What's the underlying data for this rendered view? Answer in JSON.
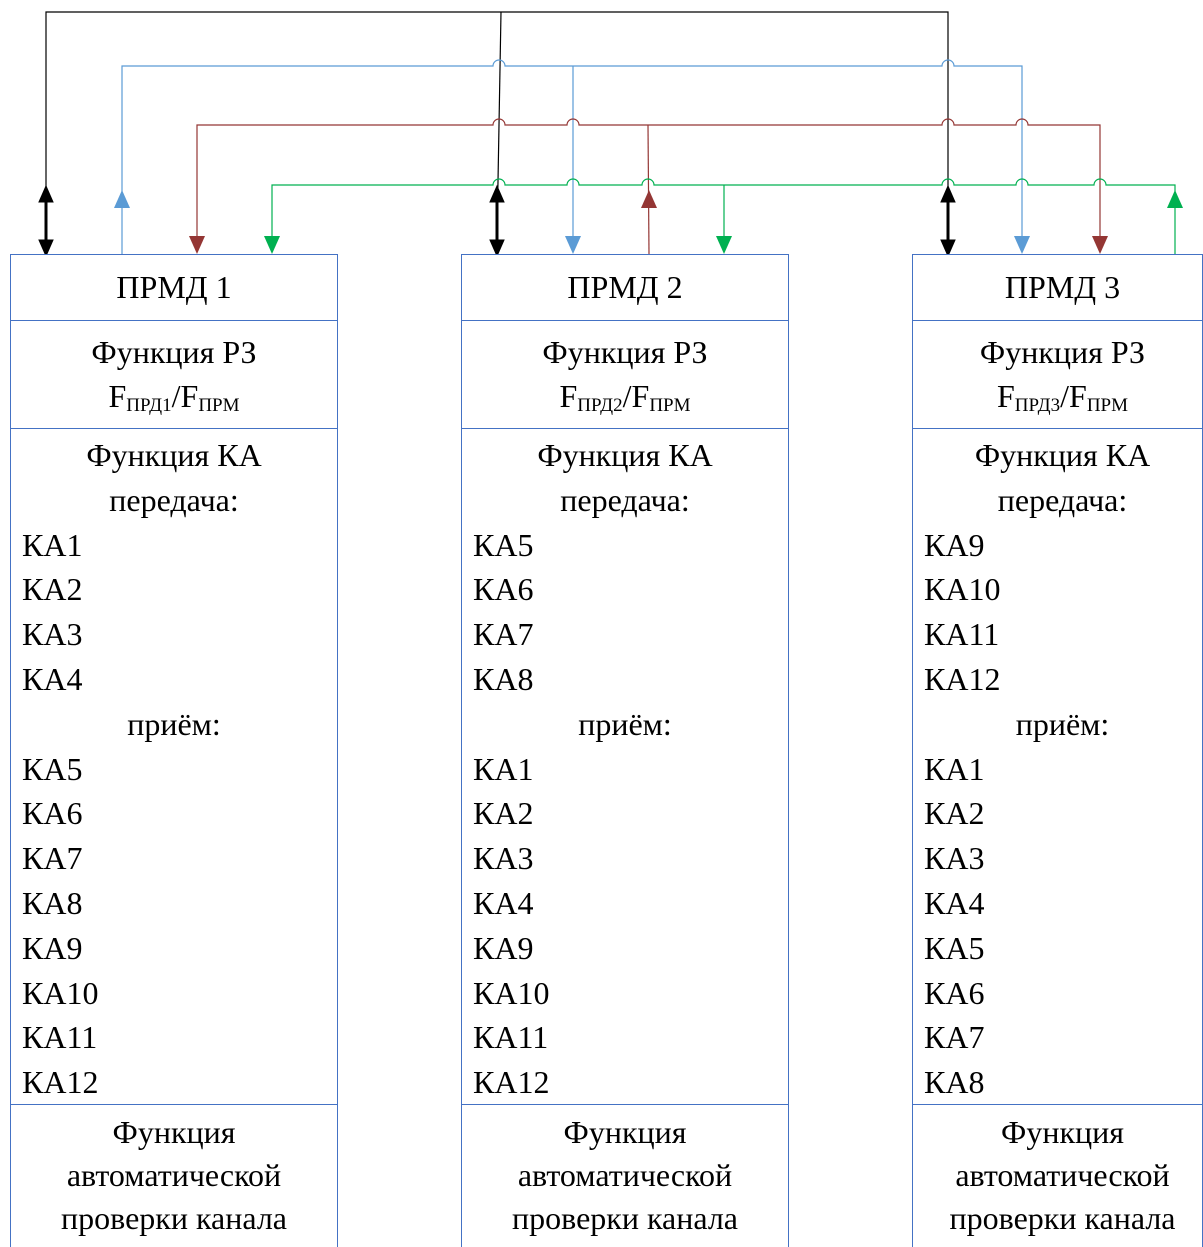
{
  "colors": {
    "frame": "#4472c4",
    "black": "#000000",
    "blue": "#5b9bd5",
    "red": "#943634",
    "green": "#00b050"
  },
  "units": [
    {
      "title": "ПРМД 1",
      "rz_label": "Функция РЗ",
      "f_tx": "F",
      "f_tx_sub": "ПРД1",
      "slash": "/",
      "f_rx": "F",
      "f_rx_sub": "ПРМ",
      "ka_label": "Функция КА",
      "tx_label": "передача:",
      "tx": [
        "КА1",
        "КА2",
        "КА3",
        "КА4"
      ],
      "rx_label": "приём:",
      "rx": [
        "КА5",
        "КА6",
        "КА7",
        "КА8",
        "КА9",
        "КА10",
        "КА11",
        "КА12"
      ],
      "auto_lines": [
        "Функция",
        "автоматической",
        "проверки канала"
      ]
    },
    {
      "title": "ПРМД 2",
      "rz_label": "Функция РЗ",
      "f_tx": "F",
      "f_tx_sub": "ПРД2",
      "slash": "/",
      "f_rx": "F",
      "f_rx_sub": "ПРМ",
      "ka_label": "Функция КА",
      "tx_label": "передача:",
      "tx": [
        "КА5",
        "КА6",
        "КА7",
        "КА8"
      ],
      "rx_label": "приём:",
      "rx": [
        "КА1",
        "КА2",
        "КА3",
        "КА4",
        "КА9",
        "КА10",
        "КА11",
        "КА12"
      ],
      "auto_lines": [
        "Функция",
        "автоматической",
        "проверки канала"
      ]
    },
    {
      "title": "ПРМД 3",
      "rz_label": "Функция РЗ",
      "f_tx": "F",
      "f_tx_sub": "ПРД3",
      "slash": "/",
      "f_rx": "F",
      "f_rx_sub": "ПРМ",
      "ka_label": "Функция КА",
      "tx_label": "передача:",
      "tx": [
        "КА9",
        "КА10",
        "КА11",
        "КА12"
      ],
      "rx_label": "приём:",
      "rx": [
        "КА1",
        "КА2",
        "КА3",
        "КА4",
        "КА5",
        "КА6",
        "КА7",
        "КА8"
      ],
      "auto_lines": [
        "Функция",
        "автоматической",
        "проверки канала"
      ]
    }
  ]
}
